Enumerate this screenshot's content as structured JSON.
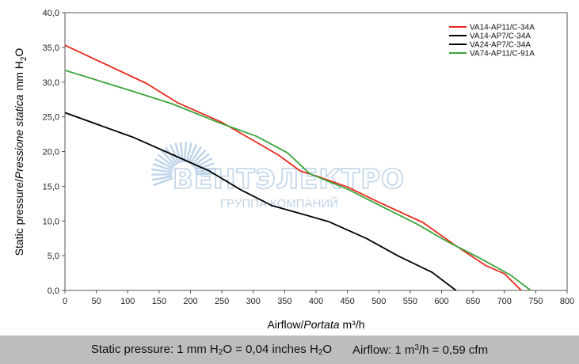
{
  "chart_data": {
    "type": "line",
    "xlabel": {
      "main": "Airflow",
      "sep": "/",
      "italic": "Portata",
      "unit": "m³/h"
    },
    "ylabel": {
      "main": "Static pressure",
      "sep": "/",
      "italic": "Pressione statica",
      "unit_pre": "mm  H",
      "unit_sub": "2",
      "unit_post": "O"
    },
    "xlim": [
      0,
      800
    ],
    "ylim": [
      0,
      40
    ],
    "x_ticks": [
      "0",
      "50",
      "100",
      "150",
      "200",
      "250",
      "300",
      "350",
      "400",
      "450",
      "500",
      "550",
      "600",
      "650",
      "700",
      "750",
      "800"
    ],
    "y_ticks": [
      "0,0",
      "5,0",
      "10,0",
      "15,0",
      "20,0",
      "25,0",
      "30,0",
      "35,0",
      "40,0"
    ],
    "grid": false,
    "legend_position": "top-right",
    "series": [
      {
        "name": "VA14-AP11/C-34A",
        "color": "#e8291c",
        "points": [
          [
            0,
            35.3
          ],
          [
            130,
            29.8
          ],
          [
            180,
            27.0
          ],
          [
            250,
            24.2
          ],
          [
            300,
            21.6
          ],
          [
            340,
            19.5
          ],
          [
            375,
            17.2
          ],
          [
            400,
            16.5
          ],
          [
            450,
            14.9
          ],
          [
            500,
            12.7
          ],
          [
            570,
            9.8
          ],
          [
            620,
            6.6
          ],
          [
            670,
            3.6
          ],
          [
            700,
            2.4
          ],
          [
            727,
            0
          ]
        ]
      },
      {
        "name": "VA14-AP7/C-34A",
        "color": "#000000",
        "points": [
          [
            0,
            25.6
          ],
          [
            110,
            22.0
          ],
          [
            180,
            19.2
          ],
          [
            230,
            17.2
          ],
          [
            280,
            14.5
          ],
          [
            330,
            12.2
          ],
          [
            370,
            11.2
          ],
          [
            420,
            9.9
          ],
          [
            480,
            7.5
          ],
          [
            530,
            5.0
          ],
          [
            585,
            2.6
          ],
          [
            623,
            0
          ]
        ]
      },
      {
        "name": "VA24-AP7/C-34A",
        "color": "#000000",
        "points": []
      },
      {
        "name": "VA74-AP11/C-91A",
        "color": "#3aa43a",
        "points": [
          [
            0,
            31.7
          ],
          [
            100,
            28.9
          ],
          [
            170,
            26.9
          ],
          [
            250,
            24.0
          ],
          [
            305,
            22.2
          ],
          [
            355,
            19.8
          ],
          [
            390,
            16.8
          ],
          [
            450,
            14.6
          ],
          [
            500,
            12.3
          ],
          [
            560,
            9.6
          ],
          [
            610,
            7.0
          ],
          [
            660,
            4.7
          ],
          [
            710,
            2.2
          ],
          [
            742,
            0
          ]
        ]
      }
    ]
  },
  "watermark": {
    "brand": "ВЕНТЭЛЕКТРО",
    "tagline": "ГРУППА КОМПАНИЙ",
    "color": "#b8cfe6"
  },
  "footer": {
    "part1_pre": "Static pressure: 1 mm H",
    "part1_sub": "2",
    "part1_mid": "O = 0,04 inches H",
    "part1_sub2": "2",
    "part1_post": "O",
    "part2_pre": "Airflow: 1 m",
    "part2_sup": "3",
    "part2_post": "/h = 0,59 cfm"
  }
}
